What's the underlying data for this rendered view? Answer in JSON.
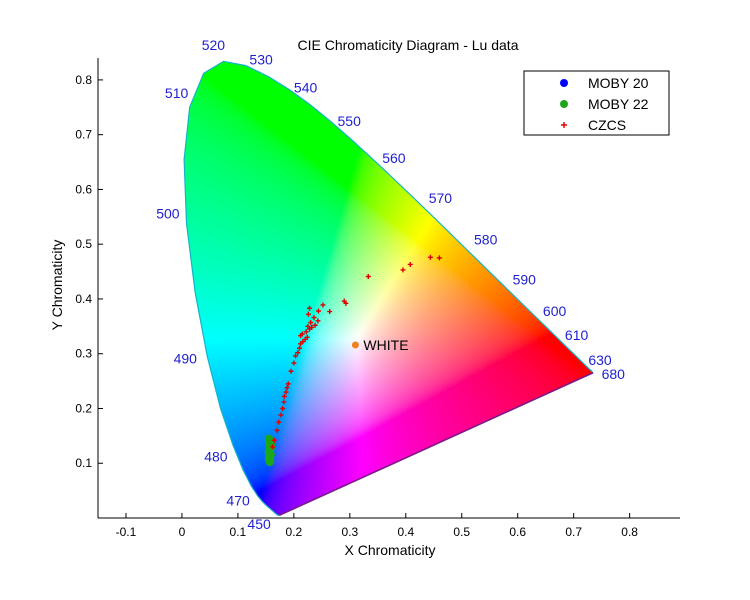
{
  "chart_data": {
    "type": "scatter",
    "title": "CIE Chromaticity Diagram - Lu data",
    "xlabel": "X Chromaticity",
    "ylabel": "Y Chromaticity",
    "xlim": [
      -0.15,
      0.89
    ],
    "ylim": [
      0.0,
      0.84
    ],
    "xticks": [
      -0.1,
      0,
      0.1,
      0.2,
      0.3,
      0.4,
      0.5,
      0.6,
      0.7,
      0.8
    ],
    "xtick_labels": [
      "-0.1",
      "0",
      "0.1",
      "0.2",
      "0.3",
      "0.4",
      "0.5",
      "0.6",
      "0.7",
      "0.8"
    ],
    "yticks": [
      0.1,
      0.2,
      0.3,
      0.4,
      0.5,
      0.6,
      0.7,
      0.8
    ],
    "ytick_labels": [
      "0.1",
      "0.2",
      "0.3",
      "0.4",
      "0.5",
      "0.6",
      "0.7",
      "0.8"
    ],
    "grid": false,
    "legend_position": "top-right",
    "wavelength_color": "#1f1fd0",
    "spectral_locus": [
      [
        0.1741,
        0.005
      ],
      [
        0.1738,
        0.0049
      ],
      [
        0.1736,
        0.0049
      ],
      [
        0.1733,
        0.0048
      ],
      [
        0.173,
        0.0048
      ],
      [
        0.1726,
        0.0048
      ],
      [
        0.1721,
        0.0048
      ],
      [
        0.1714,
        0.0051
      ],
      [
        0.1703,
        0.0058
      ],
      [
        0.1689,
        0.0069
      ],
      [
        0.1669,
        0.0086
      ],
      [
        0.1644,
        0.0109
      ],
      [
        0.1611,
        0.0138
      ],
      [
        0.1566,
        0.0177
      ],
      [
        0.151,
        0.0227
      ],
      [
        0.144,
        0.0297
      ],
      [
        0.1355,
        0.0399
      ],
      [
        0.1241,
        0.0578
      ],
      [
        0.1096,
        0.0868
      ],
      [
        0.0913,
        0.1327
      ],
      [
        0.0687,
        0.2007
      ],
      [
        0.0454,
        0.295
      ],
      [
        0.0235,
        0.4127
      ],
      [
        0.0082,
        0.5384
      ],
      [
        0.0039,
        0.6548
      ],
      [
        0.0139,
        0.7502
      ],
      [
        0.0389,
        0.812
      ],
      [
        0.0743,
        0.8338
      ],
      [
        0.1142,
        0.8262
      ],
      [
        0.1547,
        0.8059
      ],
      [
        0.1929,
        0.7816
      ],
      [
        0.2296,
        0.7543
      ],
      [
        0.2658,
        0.7243
      ],
      [
        0.3016,
        0.6923
      ],
      [
        0.3373,
        0.6589
      ],
      [
        0.3731,
        0.6245
      ],
      [
        0.4087,
        0.5896
      ],
      [
        0.4441,
        0.5547
      ],
      [
        0.4788,
        0.5202
      ],
      [
        0.5125,
        0.4866
      ],
      [
        0.5448,
        0.4544
      ],
      [
        0.5752,
        0.4242
      ],
      [
        0.6029,
        0.3965
      ],
      [
        0.627,
        0.3725
      ],
      [
        0.6482,
        0.3514
      ],
      [
        0.6658,
        0.334
      ],
      [
        0.6801,
        0.3197
      ],
      [
        0.6915,
        0.3083
      ],
      [
        0.7006,
        0.2993
      ],
      [
        0.7079,
        0.292
      ],
      [
        0.714,
        0.2859
      ],
      [
        0.719,
        0.2809
      ],
      [
        0.723,
        0.277
      ],
      [
        0.726,
        0.274
      ],
      [
        0.7283,
        0.2717
      ],
      [
        0.73,
        0.27
      ],
      [
        0.7311,
        0.2689
      ],
      [
        0.732,
        0.268
      ],
      [
        0.7327,
        0.2673
      ],
      [
        0.7334,
        0.2666
      ],
      [
        0.734,
        0.266
      ],
      [
        0.7344,
        0.2656
      ],
      [
        0.7346,
        0.2654
      ],
      [
        0.7347,
        0.2653
      ]
    ],
    "wavelength_labels": [
      {
        "label": "450",
        "x": 0.157,
        "y": 0.018
      },
      {
        "label": "470",
        "x": 0.124,
        "y": 0.058
      },
      {
        "label": "480",
        "x": 0.091,
        "y": 0.133
      },
      {
        "label": "490",
        "x": 0.045,
        "y": 0.295
      },
      {
        "label": "500",
        "x": 0.008,
        "y": 0.538
      },
      {
        "label": "510",
        "x": 0.014,
        "y": 0.75
      },
      {
        "label": "520",
        "x": 0.074,
        "y": 0.834
      },
      {
        "label": "530",
        "x": 0.155,
        "y": 0.806
      },
      {
        "label": "540",
        "x": 0.23,
        "y": 0.754
      },
      {
        "label": "550",
        "x": 0.302,
        "y": 0.692
      },
      {
        "label": "560",
        "x": 0.373,
        "y": 0.625
      },
      {
        "label": "570",
        "x": 0.444,
        "y": 0.555
      },
      {
        "label": "580",
        "x": 0.513,
        "y": 0.487
      },
      {
        "label": "590",
        "x": 0.575,
        "y": 0.424
      },
      {
        "label": "600",
        "x": 0.627,
        "y": 0.373
      },
      {
        "label": "610",
        "x": 0.666,
        "y": 0.334
      },
      {
        "label": "630",
        "x": 0.708,
        "y": 0.292
      },
      {
        "label": "680",
        "x": 0.732,
        "y": 0.268
      }
    ],
    "series": [
      {
        "name": "MOBY 20",
        "marker": "circle",
        "color": "#0000ff",
        "points": []
      },
      {
        "name": "MOBY 22",
        "marker": "circle",
        "color": "#1aa81a",
        "points": [
          [
            0.155,
            0.145
          ],
          [
            0.157,
            0.14
          ],
          [
            0.158,
            0.135
          ],
          [
            0.156,
            0.13
          ],
          [
            0.157,
            0.125
          ],
          [
            0.155,
            0.12
          ],
          [
            0.156,
            0.115
          ],
          [
            0.157,
            0.11
          ],
          [
            0.155,
            0.108
          ],
          [
            0.158,
            0.118
          ],
          [
            0.159,
            0.128
          ],
          [
            0.156,
            0.138
          ],
          [
            0.158,
            0.143
          ],
          [
            0.16,
            0.133
          ],
          [
            0.157,
            0.122
          ],
          [
            0.159,
            0.115
          ],
          [
            0.156,
            0.112
          ],
          [
            0.158,
            0.105
          ],
          [
            0.157,
            0.102
          ],
          [
            0.159,
            0.139
          ]
        ]
      },
      {
        "name": "CZCS",
        "marker": "plus",
        "color": "#e00000",
        "points": [
          [
            0.162,
            0.13
          ],
          [
            0.165,
            0.142
          ],
          [
            0.17,
            0.16
          ],
          [
            0.173,
            0.175
          ],
          [
            0.177,
            0.188
          ],
          [
            0.18,
            0.2
          ],
          [
            0.182,
            0.212
          ],
          [
            0.183,
            0.222
          ],
          [
            0.186,
            0.23
          ],
          [
            0.188,
            0.238
          ],
          [
            0.19,
            0.245
          ],
          [
            0.195,
            0.268
          ],
          [
            0.2,
            0.283
          ],
          [
            0.203,
            0.296
          ],
          [
            0.207,
            0.302
          ],
          [
            0.21,
            0.31
          ],
          [
            0.212,
            0.318
          ],
          [
            0.216,
            0.322
          ],
          [
            0.22,
            0.326
          ],
          [
            0.224,
            0.33
          ],
          [
            0.212,
            0.333
          ],
          [
            0.215,
            0.336
          ],
          [
            0.222,
            0.34
          ],
          [
            0.228,
            0.345
          ],
          [
            0.225,
            0.35
          ],
          [
            0.232,
            0.348
          ],
          [
            0.238,
            0.352
          ],
          [
            0.23,
            0.357
          ],
          [
            0.243,
            0.36
          ],
          [
            0.236,
            0.366
          ],
          [
            0.226,
            0.372
          ],
          [
            0.244,
            0.378
          ],
          [
            0.228,
            0.383
          ],
          [
            0.252,
            0.389
          ],
          [
            0.264,
            0.377
          ],
          [
            0.29,
            0.396
          ],
          [
            0.293,
            0.392
          ],
          [
            0.333,
            0.441
          ],
          [
            0.395,
            0.453
          ],
          [
            0.408,
            0.463
          ],
          [
            0.444,
            0.476
          ],
          [
            0.46,
            0.475
          ]
        ]
      }
    ],
    "white_point": {
      "label": "WHITE",
      "x": 0.31,
      "y": 0.316,
      "color": "#f08020"
    }
  }
}
